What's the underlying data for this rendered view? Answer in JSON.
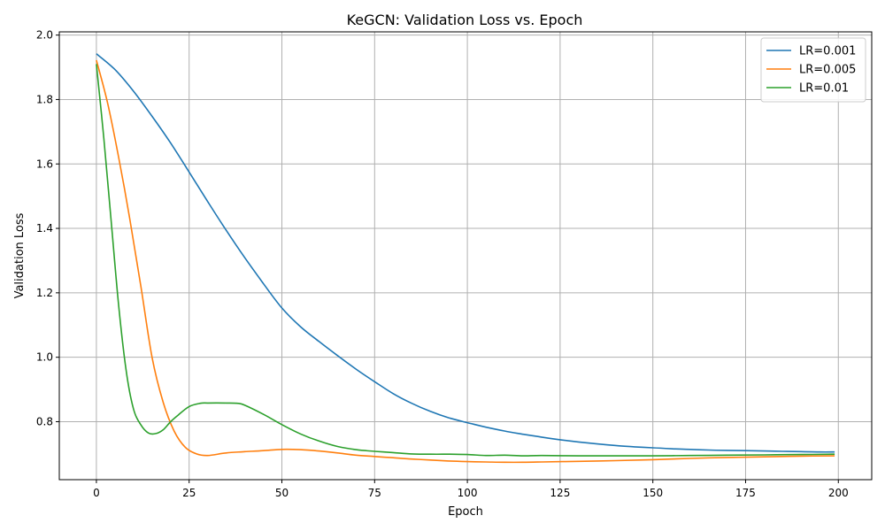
{
  "chart_data": {
    "type": "line",
    "title": "KeGCN: Validation Loss vs. Epoch",
    "xlabel": "Epoch",
    "ylabel": "Validation Loss",
    "xlim": [
      -10,
      209
    ],
    "ylim": [
      0.62,
      2.01
    ],
    "xticks": [
      0,
      25,
      50,
      75,
      100,
      125,
      150,
      175,
      200
    ],
    "yticks": [
      0.8,
      1.0,
      1.2,
      1.4,
      1.6,
      1.8,
      2.0
    ],
    "xtick_labels": [
      "0",
      "25",
      "50",
      "75",
      "100",
      "125",
      "150",
      "175",
      "200"
    ],
    "ytick_labels": [
      "0.8",
      "1.0",
      "1.2",
      "1.4",
      "1.6",
      "1.8",
      "2.0"
    ],
    "grid": true,
    "legend_position": "top-right",
    "series": [
      {
        "name": "LR=0.001",
        "color": "#1f77b4",
        "x": [
          0,
          5,
          10,
          15,
          20,
          25,
          30,
          35,
          40,
          45,
          50,
          55,
          60,
          65,
          70,
          75,
          80,
          85,
          90,
          95,
          100,
          105,
          110,
          115,
          120,
          125,
          130,
          135,
          140,
          145,
          150,
          155,
          160,
          165,
          170,
          175,
          180,
          185,
          190,
          195,
          199
        ],
        "values": [
          1.942,
          1.893,
          1.826,
          1.748,
          1.665,
          1.575,
          1.483,
          1.394,
          1.309,
          1.229,
          1.153,
          1.095,
          1.049,
          1.005,
          0.963,
          0.924,
          0.887,
          0.857,
          0.832,
          0.812,
          0.797,
          0.783,
          0.771,
          0.761,
          0.752,
          0.744,
          0.737,
          0.731,
          0.726,
          0.722,
          0.719,
          0.716,
          0.714,
          0.712,
          0.711,
          0.71,
          0.709,
          0.708,
          0.707,
          0.706,
          0.706
        ]
      },
      {
        "name": "LR=0.005",
        "color": "#ff7f0e",
        "x": [
          0,
          3,
          6,
          9,
          12,
          15,
          18,
          21,
          24,
          27,
          30,
          35,
          40,
          45,
          50,
          55,
          60,
          65,
          70,
          75,
          80,
          85,
          90,
          95,
          100,
          105,
          110,
          115,
          120,
          130,
          140,
          150,
          160,
          170,
          180,
          190,
          199
        ],
        "values": [
          1.922,
          1.79,
          1.62,
          1.43,
          1.22,
          1.0,
          0.86,
          0.77,
          0.72,
          0.7,
          0.695,
          0.703,
          0.707,
          0.71,
          0.714,
          0.713,
          0.709,
          0.703,
          0.696,
          0.692,
          0.688,
          0.684,
          0.681,
          0.678,
          0.676,
          0.675,
          0.674,
          0.674,
          0.675,
          0.677,
          0.679,
          0.682,
          0.686,
          0.689,
          0.691,
          0.693,
          0.694
        ]
      },
      {
        "name": "LR=0.01",
        "color": "#2ca02c",
        "x": [
          0,
          2,
          4,
          6,
          8,
          10,
          12,
          14,
          16,
          18,
          20,
          22,
          25,
          28,
          30,
          35,
          38,
          40,
          45,
          50,
          55,
          60,
          65,
          70,
          75,
          80,
          85,
          90,
          95,
          100,
          105,
          110,
          115,
          120,
          130,
          140,
          150,
          160,
          170,
          180,
          190,
          199
        ],
        "values": [
          1.91,
          1.68,
          1.42,
          1.16,
          0.96,
          0.84,
          0.79,
          0.765,
          0.763,
          0.775,
          0.8,
          0.82,
          0.847,
          0.857,
          0.858,
          0.858,
          0.857,
          0.851,
          0.823,
          0.791,
          0.762,
          0.74,
          0.723,
          0.713,
          0.708,
          0.704,
          0.7,
          0.699,
          0.699,
          0.698,
          0.695,
          0.696,
          0.694,
          0.695,
          0.694,
          0.694,
          0.694,
          0.695,
          0.696,
          0.697,
          0.698,
          0.699
        ]
      }
    ]
  }
}
